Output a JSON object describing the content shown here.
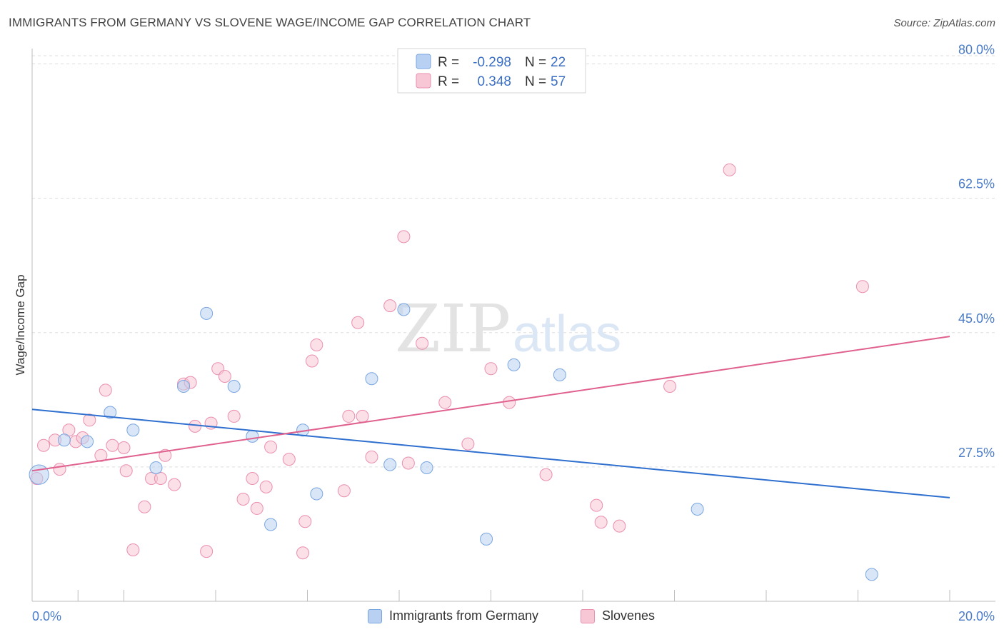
{
  "header": {
    "title": "IMMIGRANTS FROM GERMANY VS SLOVENE WAGE/INCOME GAP CORRELATION CHART",
    "source": "Source: ZipAtlas.com"
  },
  "watermark": {
    "zip": "ZIP",
    "atlas": "atlas"
  },
  "colors": {
    "blue_fill": "#b8d1f2",
    "blue_stroke": "#7aa6e0",
    "blue_line": "#2f6fcf",
    "pink_fill": "#f8c7d6",
    "pink_stroke": "#ea8fae",
    "pink_line": "#e0608e",
    "tick_text": "#4a7cc9",
    "grid": "#dddddd"
  },
  "legend_box": {
    "rows": [
      {
        "r_label": "R =",
        "r_value": "-0.298",
        "n_label": "N =",
        "n_value": "22"
      },
      {
        "r_label": "R =",
        "r_value": "0.348",
        "n_label": "N =",
        "n_value": "57"
      }
    ]
  },
  "bottom_legend": [
    {
      "label": "Immigrants from Germany"
    },
    {
      "label": "Slovenes"
    }
  ],
  "chart_data": {
    "type": "scatter",
    "title": "IMMIGRANTS FROM GERMANY VS SLOVENE WAGE/INCOME GAP CORRELATION CHART",
    "xlabel": "",
    "ylabel": "Wage/Income Gap",
    "xlim": [
      0,
      20
    ],
    "ylim": [
      10,
      82
    ],
    "x_tick_labels": [
      "0.0%",
      "20.0%"
    ],
    "y_ticks": [
      27.5,
      45.0,
      62.5,
      80.0
    ],
    "y_tick_labels": [
      "27.5%",
      "45.0%",
      "62.5%",
      "80.0%"
    ],
    "grid": true,
    "legend_position": "top-center",
    "series": [
      {
        "name": "Immigrants from Germany",
        "r": -0.298,
        "n": 22,
        "trend": [
          [
            0,
            35.0
          ],
          [
            20,
            23.5
          ]
        ],
        "points": [
          [
            0.15,
            26.5,
            1.6
          ],
          [
            0.7,
            31.0,
            1
          ],
          [
            1.2,
            30.8,
            1
          ],
          [
            1.7,
            34.6,
            1
          ],
          [
            2.2,
            32.3,
            1
          ],
          [
            2.7,
            27.4,
            1
          ],
          [
            3.3,
            38.0,
            1
          ],
          [
            3.8,
            47.5,
            1
          ],
          [
            4.4,
            38.0,
            1
          ],
          [
            4.8,
            31.5,
            1
          ],
          [
            5.2,
            20.0,
            1
          ],
          [
            5.9,
            32.3,
            1
          ],
          [
            6.2,
            24.0,
            1
          ],
          [
            7.4,
            39.0,
            1
          ],
          [
            7.8,
            27.8,
            1
          ],
          [
            8.1,
            48.0,
            1
          ],
          [
            8.6,
            27.4,
            1
          ],
          [
            9.9,
            18.1,
            1
          ],
          [
            10.5,
            40.8,
            1
          ],
          [
            11.5,
            39.5,
            1
          ],
          [
            14.5,
            22.0,
            1
          ],
          [
            18.3,
            13.5,
            1
          ]
        ]
      },
      {
        "name": "Slovenes",
        "r": 0.348,
        "n": 57,
        "trend": [
          [
            0,
            27.0
          ],
          [
            20,
            44.5
          ]
        ],
        "points": [
          [
            0.1,
            26.0,
            1
          ],
          [
            0.25,
            30.3,
            1
          ],
          [
            0.5,
            31.0,
            1
          ],
          [
            0.6,
            27.2,
            1
          ],
          [
            0.8,
            32.3,
            1
          ],
          [
            0.95,
            30.8,
            1
          ],
          [
            1.1,
            31.3,
            1
          ],
          [
            1.25,
            33.6,
            1
          ],
          [
            1.5,
            29.0,
            1
          ],
          [
            1.6,
            37.5,
            1
          ],
          [
            1.75,
            30.3,
            1
          ],
          [
            2.0,
            30.0,
            1
          ],
          [
            2.05,
            27.0,
            1
          ],
          [
            2.2,
            16.7,
            1
          ],
          [
            2.45,
            22.3,
            1
          ],
          [
            2.6,
            26.0,
            1
          ],
          [
            2.8,
            26.0,
            1
          ],
          [
            2.9,
            29.0,
            1
          ],
          [
            3.1,
            25.2,
            1
          ],
          [
            3.3,
            38.3,
            1
          ],
          [
            3.45,
            38.5,
            1
          ],
          [
            3.55,
            32.8,
            1
          ],
          [
            3.8,
            16.5,
            1
          ],
          [
            3.9,
            33.2,
            1
          ],
          [
            4.05,
            40.3,
            1
          ],
          [
            4.2,
            39.3,
            1
          ],
          [
            4.4,
            34.1,
            1
          ],
          [
            4.6,
            23.3,
            1
          ],
          [
            4.8,
            26.0,
            1
          ],
          [
            4.9,
            22.1,
            1
          ],
          [
            5.1,
            24.9,
            1
          ],
          [
            5.2,
            30.1,
            1
          ],
          [
            5.6,
            28.5,
            1
          ],
          [
            5.9,
            16.3,
            1
          ],
          [
            5.95,
            20.4,
            1
          ],
          [
            6.1,
            41.3,
            1
          ],
          [
            6.2,
            43.4,
            1
          ],
          [
            6.8,
            24.4,
            1
          ],
          [
            6.9,
            34.1,
            1
          ],
          [
            7.1,
            46.3,
            1
          ],
          [
            7.2,
            34.1,
            1
          ],
          [
            7.4,
            28.8,
            1
          ],
          [
            7.8,
            48.5,
            1
          ],
          [
            8.1,
            57.5,
            1
          ],
          [
            8.2,
            28.0,
            1
          ],
          [
            8.5,
            43.6,
            1
          ],
          [
            9.0,
            35.9,
            1
          ],
          [
            9.5,
            30.5,
            1
          ],
          [
            10.0,
            40.3,
            1
          ],
          [
            10.4,
            35.9,
            1
          ],
          [
            11.2,
            26.5,
            1
          ],
          [
            12.3,
            22.5,
            1
          ],
          [
            12.4,
            20.3,
            1
          ],
          [
            12.8,
            19.8,
            1
          ],
          [
            13.9,
            38.0,
            1
          ],
          [
            15.2,
            66.2,
            1
          ],
          [
            18.1,
            51.0,
            1
          ]
        ]
      }
    ]
  }
}
